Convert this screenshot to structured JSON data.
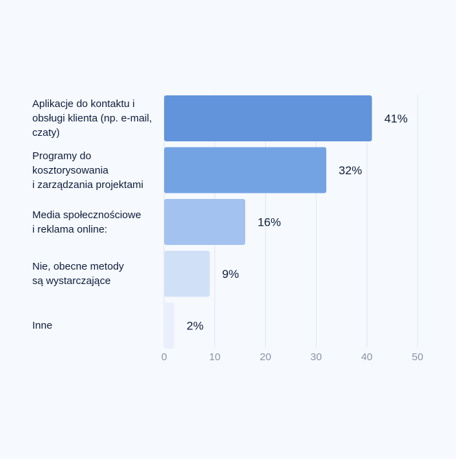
{
  "chart_data": {
    "type": "bar",
    "orientation": "horizontal",
    "categories": [
      "Aplikacje do kontaktu i\nobsługi klienta (np. e-mail,\nczaty)",
      "Programy do\nkosztorysowania\ni zarządzania projektami",
      "Media społecznościowe\ni reklama online:",
      "Nie, obecne metody\nsą wystarczające",
      "Inne"
    ],
    "values": [
      41,
      32,
      16,
      9,
      2
    ],
    "value_labels": [
      "41%",
      "32%",
      "16%",
      "9%",
      "2%"
    ],
    "bar_colors": [
      "#6194db",
      "#74a3e4",
      "#a4c2ef",
      "#d0e0f7",
      "#e9f0fc"
    ],
    "xlim": [
      0,
      50
    ],
    "xticks": [
      0,
      10,
      20,
      30,
      40,
      50
    ],
    "xtick_labels": [
      "0",
      "10",
      "20",
      "30",
      "40",
      "50"
    ],
    "grid": "vertical",
    "title": "",
    "xlabel": "",
    "ylabel": ""
  }
}
